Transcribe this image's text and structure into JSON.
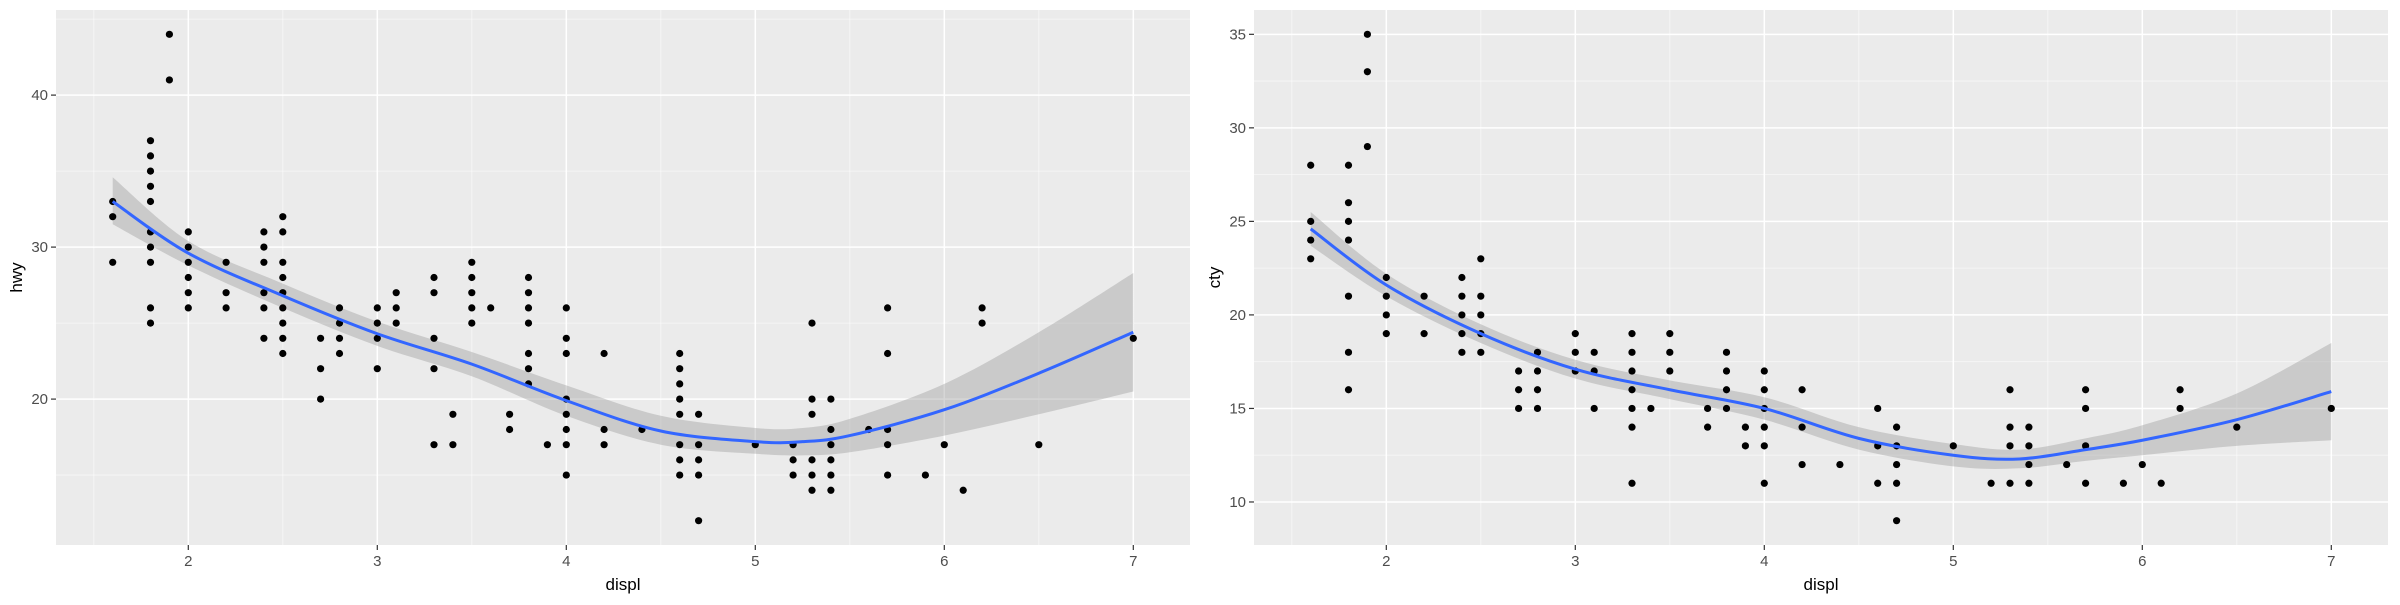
{
  "figure": {
    "colors": {
      "panel": "#ebebeb",
      "grid_major": "#ffffff",
      "point": "#000000",
      "line": "#3366ff",
      "ribbon": "#999999"
    }
  },
  "chart_data": [
    {
      "type": "scatter",
      "xlabel": "displ",
      "ylabel": "hwy",
      "xlim": [
        1.3,
        7.3
      ],
      "ylim": [
        10.4,
        45.6
      ],
      "x_ticks": [
        2,
        3,
        4,
        5,
        6,
        7
      ],
      "y_ticks": [
        20,
        30,
        40
      ],
      "x_tick_labels": [
        "2",
        "3",
        "4",
        "5",
        "6",
        "7"
      ],
      "y_tick_labels": [
        "20",
        "30",
        "40"
      ],
      "grid": true,
      "legend": "none",
      "points": [
        [
          1.6,
          33
        ],
        [
          1.6,
          32
        ],
        [
          1.6,
          29
        ],
        [
          1.8,
          37
        ],
        [
          1.8,
          36
        ],
        [
          1.8,
          35
        ],
        [
          1.8,
          34
        ],
        [
          1.8,
          33
        ],
        [
          1.8,
          31
        ],
        [
          1.8,
          30
        ],
        [
          1.8,
          29
        ],
        [
          1.8,
          26
        ],
        [
          1.8,
          25
        ],
        [
          1.9,
          44
        ],
        [
          1.9,
          41
        ],
        [
          2.0,
          31
        ],
        [
          2.0,
          30
        ],
        [
          2.0,
          29
        ],
        [
          2.0,
          28
        ],
        [
          2.0,
          27
        ],
        [
          2.0,
          26
        ],
        [
          2.2,
          29
        ],
        [
          2.2,
          27
        ],
        [
          2.2,
          26
        ],
        [
          2.4,
          31
        ],
        [
          2.4,
          30
        ],
        [
          2.4,
          29
        ],
        [
          2.4,
          27
        ],
        [
          2.4,
          26
        ],
        [
          2.4,
          24
        ],
        [
          2.5,
          32
        ],
        [
          2.5,
          31
        ],
        [
          2.5,
          29
        ],
        [
          2.5,
          28
        ],
        [
          2.5,
          27
        ],
        [
          2.5,
          26
        ],
        [
          2.5,
          25
        ],
        [
          2.5,
          24
        ],
        [
          2.5,
          23
        ],
        [
          2.7,
          24
        ],
        [
          2.7,
          22
        ],
        [
          2.7,
          20
        ],
        [
          2.8,
          26
        ],
        [
          2.8,
          25
        ],
        [
          2.8,
          24
        ],
        [
          2.8,
          23
        ],
        [
          3.0,
          26
        ],
        [
          3.0,
          25
        ],
        [
          3.0,
          24
        ],
        [
          3.0,
          22
        ],
        [
          3.1,
          27
        ],
        [
          3.1,
          26
        ],
        [
          3.1,
          25
        ],
        [
          3.3,
          28
        ],
        [
          3.3,
          27
        ],
        [
          3.3,
          24
        ],
        [
          3.3,
          22
        ],
        [
          3.3,
          17
        ],
        [
          3.4,
          19
        ],
        [
          3.4,
          17
        ],
        [
          3.5,
          29
        ],
        [
          3.5,
          28
        ],
        [
          3.5,
          27
        ],
        [
          3.5,
          26
        ],
        [
          3.5,
          25
        ],
        [
          3.6,
          26
        ],
        [
          3.7,
          19
        ],
        [
          3.7,
          18
        ],
        [
          3.8,
          28
        ],
        [
          3.8,
          27
        ],
        [
          3.8,
          26
        ],
        [
          3.8,
          25
        ],
        [
          3.8,
          23
        ],
        [
          3.8,
          22
        ],
        [
          3.8,
          21
        ],
        [
          3.9,
          17
        ],
        [
          4.0,
          26
        ],
        [
          4.0,
          24
        ],
        [
          4.0,
          23
        ],
        [
          4.0,
          20
        ],
        [
          4.0,
          19
        ],
        [
          4.0,
          18
        ],
        [
          4.0,
          17
        ],
        [
          4.0,
          15
        ],
        [
          4.2,
          23
        ],
        [
          4.2,
          18
        ],
        [
          4.2,
          17
        ],
        [
          4.4,
          18
        ],
        [
          4.6,
          23
        ],
        [
          4.6,
          22
        ],
        [
          4.6,
          21
        ],
        [
          4.6,
          20
        ],
        [
          4.6,
          19
        ],
        [
          4.6,
          17
        ],
        [
          4.6,
          16
        ],
        [
          4.6,
          15
        ],
        [
          4.7,
          19
        ],
        [
          4.7,
          17
        ],
        [
          4.7,
          16
        ],
        [
          4.7,
          15
        ],
        [
          4.7,
          12
        ],
        [
          5.0,
          17
        ],
        [
          5.2,
          17
        ],
        [
          5.2,
          16
        ],
        [
          5.2,
          15
        ],
        [
          5.3,
          25
        ],
        [
          5.3,
          20
        ],
        [
          5.3,
          19
        ],
        [
          5.3,
          16
        ],
        [
          5.3,
          15
        ],
        [
          5.3,
          14
        ],
        [
          5.4,
          20
        ],
        [
          5.4,
          18
        ],
        [
          5.4,
          17
        ],
        [
          5.4,
          16
        ],
        [
          5.4,
          15
        ],
        [
          5.4,
          14
        ],
        [
          5.6,
          18
        ],
        [
          5.7,
          26
        ],
        [
          5.7,
          23
        ],
        [
          5.7,
          18
        ],
        [
          5.7,
          17
        ],
        [
          5.7,
          15
        ],
        [
          5.9,
          15
        ],
        [
          6.0,
          17
        ],
        [
          6.1,
          14
        ],
        [
          6.2,
          26
        ],
        [
          6.2,
          25
        ],
        [
          6.5,
          17
        ],
        [
          7.0,
          24
        ]
      ],
      "smooth": {
        "x": [
          1.6,
          2.0,
          2.5,
          3.0,
          3.5,
          4.0,
          4.5,
          5.0,
          5.25,
          5.5,
          6.0,
          6.5,
          7.0
        ],
        "y": [
          33.0,
          29.6,
          26.8,
          24.3,
          22.3,
          19.9,
          17.9,
          17.2,
          17.2,
          17.6,
          19.3,
          21.7,
          24.4
        ],
        "lo": [
          31.5,
          28.8,
          26.0,
          23.5,
          21.5,
          18.9,
          17.0,
          16.4,
          16.3,
          16.5,
          17.6,
          19.0,
          20.5
        ],
        "hi": [
          34.6,
          30.4,
          27.6,
          25.1,
          23.1,
          20.9,
          18.9,
          18.1,
          18.1,
          18.7,
          21.0,
          24.4,
          28.3
        ]
      }
    },
    {
      "type": "scatter",
      "xlabel": "displ",
      "ylabel": "cty",
      "xlim": [
        1.3,
        7.3
      ],
      "ylim": [
        7.7,
        36.3
      ],
      "x_ticks": [
        2,
        3,
        4,
        5,
        6,
        7
      ],
      "y_ticks": [
        10,
        15,
        20,
        25,
        30,
        35
      ],
      "x_tick_labels": [
        "2",
        "3",
        "4",
        "5",
        "6",
        "7"
      ],
      "y_tick_labels": [
        "10",
        "15",
        "20",
        "25",
        "30",
        "35"
      ],
      "grid": true,
      "legend": "none",
      "points": [
        [
          1.6,
          28
        ],
        [
          1.6,
          25
        ],
        [
          1.6,
          24
        ],
        [
          1.6,
          23
        ],
        [
          1.8,
          28
        ],
        [
          1.8,
          26
        ],
        [
          1.8,
          25
        ],
        [
          1.8,
          24
        ],
        [
          1.8,
          21
        ],
        [
          1.8,
          18
        ],
        [
          1.8,
          16
        ],
        [
          1.9,
          35
        ],
        [
          1.9,
          33
        ],
        [
          1.9,
          29
        ],
        [
          2.0,
          22
        ],
        [
          2.0,
          21
        ],
        [
          2.0,
          20
        ],
        [
          2.0,
          19
        ],
        [
          2.2,
          21
        ],
        [
          2.2,
          19
        ],
        [
          2.4,
          22
        ],
        [
          2.4,
          21
        ],
        [
          2.4,
          20
        ],
        [
          2.4,
          19
        ],
        [
          2.4,
          18
        ],
        [
          2.5,
          23
        ],
        [
          2.5,
          21
        ],
        [
          2.5,
          20
        ],
        [
          2.5,
          19
        ],
        [
          2.5,
          18
        ],
        [
          2.7,
          17
        ],
        [
          2.7,
          16
        ],
        [
          2.7,
          15
        ],
        [
          2.8,
          18
        ],
        [
          2.8,
          17
        ],
        [
          2.8,
          16
        ],
        [
          2.8,
          15
        ],
        [
          3.0,
          19
        ],
        [
          3.0,
          18
        ],
        [
          3.0,
          17
        ],
        [
          3.1,
          18
        ],
        [
          3.1,
          17
        ],
        [
          3.1,
          15
        ],
        [
          3.3,
          19
        ],
        [
          3.3,
          18
        ],
        [
          3.3,
          17
        ],
        [
          3.3,
          16
        ],
        [
          3.3,
          15
        ],
        [
          3.3,
          14
        ],
        [
          3.3,
          11
        ],
        [
          3.4,
          15
        ],
        [
          3.5,
          19
        ],
        [
          3.5,
          18
        ],
        [
          3.5,
          17
        ],
        [
          3.7,
          15
        ],
        [
          3.7,
          14
        ],
        [
          3.8,
          18
        ],
        [
          3.8,
          17
        ],
        [
          3.8,
          16
        ],
        [
          3.8,
          15
        ],
        [
          3.9,
          14
        ],
        [
          3.9,
          13
        ],
        [
          4.0,
          17
        ],
        [
          4.0,
          16
        ],
        [
          4.0,
          15
        ],
        [
          4.0,
          14
        ],
        [
          4.0,
          13
        ],
        [
          4.0,
          11
        ],
        [
          4.2,
          16
        ],
        [
          4.2,
          14
        ],
        [
          4.2,
          12
        ],
        [
          4.4,
          12
        ],
        [
          4.6,
          15
        ],
        [
          4.6,
          13
        ],
        [
          4.6,
          11
        ],
        [
          4.7,
          14
        ],
        [
          4.7,
          13
        ],
        [
          4.7,
          12
        ],
        [
          4.7,
          11
        ],
        [
          4.7,
          9
        ],
        [
          5.0,
          13
        ],
        [
          5.2,
          11
        ],
        [
          5.3,
          16
        ],
        [
          5.3,
          14
        ],
        [
          5.3,
          13
        ],
        [
          5.3,
          11
        ],
        [
          5.4,
          14
        ],
        [
          5.4,
          13
        ],
        [
          5.4,
          12
        ],
        [
          5.4,
          11
        ],
        [
          5.6,
          12
        ],
        [
          5.7,
          16
        ],
        [
          5.7,
          15
        ],
        [
          5.7,
          13
        ],
        [
          5.7,
          11
        ],
        [
          5.9,
          11
        ],
        [
          6.0,
          12
        ],
        [
          6.1,
          11
        ],
        [
          6.2,
          16
        ],
        [
          6.2,
          15
        ],
        [
          6.5,
          14
        ],
        [
          7.0,
          15
        ]
      ],
      "smooth": {
        "x": [
          1.6,
          2.0,
          2.5,
          3.0,
          3.5,
          4.0,
          4.5,
          5.0,
          5.35,
          5.7,
          6.0,
          6.5,
          7.0
        ],
        "y": [
          24.6,
          21.6,
          19.0,
          17.1,
          16.0,
          15.0,
          13.4,
          12.5,
          12.3,
          12.8,
          13.3,
          14.4,
          15.9
        ],
        "lo": [
          23.7,
          21.0,
          18.5,
          16.6,
          15.5,
          14.4,
          12.8,
          11.9,
          11.8,
          12.2,
          12.5,
          13.0,
          13.3
        ],
        "hi": [
          25.5,
          22.2,
          19.5,
          17.6,
          16.5,
          15.6,
          14.0,
          13.1,
          12.8,
          13.4,
          14.1,
          15.8,
          18.5
        ]
      }
    }
  ]
}
